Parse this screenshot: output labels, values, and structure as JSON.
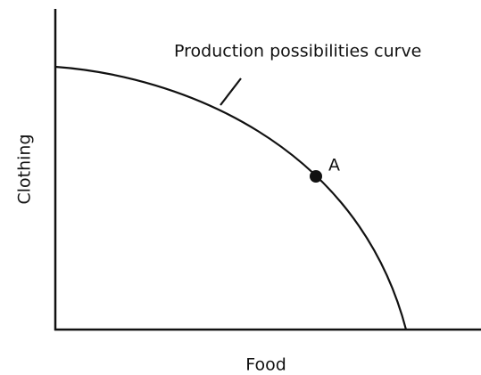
{
  "diagram": {
    "x_axis_label": "Food",
    "y_axis_label": "Clothing",
    "curve_label": "Production possibilities curve",
    "point_label": "A"
  }
}
